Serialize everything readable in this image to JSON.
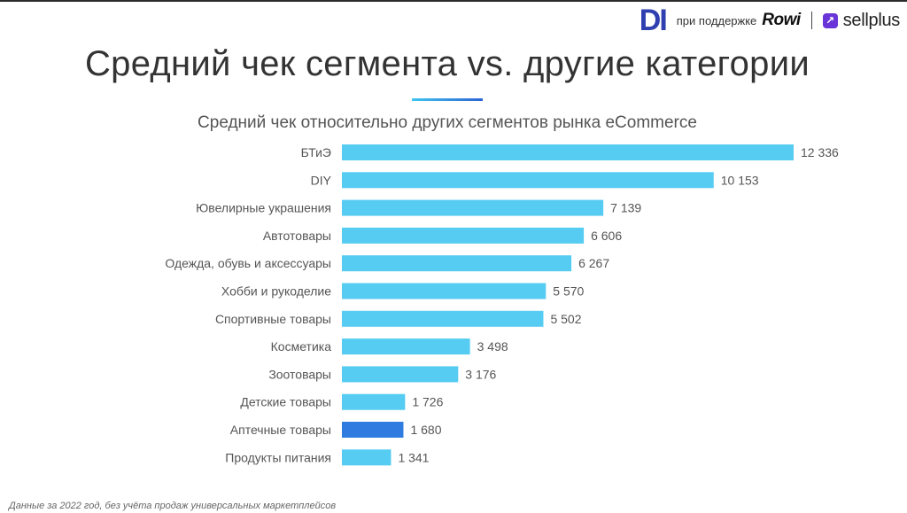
{
  "header": {
    "logo_text": "DI",
    "support_text": "при поддержке",
    "partner_logo": "Rowi",
    "sellplus_icon": "↗",
    "sellplus_text": "sellplus"
  },
  "page_title": "Средний чек сегмента vs. другие категории",
  "footnote": "Данные за 2022 год, без учёта продаж универсальных маркетплейсов",
  "colors": {
    "bar": "#56ccf2",
    "highlight_bar": "#2f7be0",
    "accent_gradient_start": "#3ec4ee",
    "accent_gradient_end": "#2d63d6"
  },
  "chart_data": {
    "type": "bar",
    "orientation": "horizontal",
    "title": "Средний чек относительно других сегментов рынка eCommerce",
    "categories": [
      "БТиЭ",
      "DIY",
      "Ювелирные украшения",
      "Автотовары",
      "Одежда, обувь и аксессуары",
      "Хобби и рукоделие",
      "Спортивные товары",
      "Косметика",
      "Зоотовары",
      "Детские товары",
      "Аптечные товары",
      "Продукты питания"
    ],
    "values": [
      12336,
      10153,
      7139,
      6606,
      6267,
      5570,
      5502,
      3498,
      3176,
      1726,
      1680,
      1341
    ],
    "value_labels": [
      "12 336",
      "10 153",
      "7 139",
      "6 606",
      "6 267",
      "5 570",
      "5 502",
      "3 498",
      "3 176",
      "1 726",
      "1 680",
      "1 341"
    ],
    "highlight_category": "Аптечные товары",
    "xlim": [
      0,
      12336
    ],
    "xlabel": "",
    "ylabel": "",
    "grid": false,
    "legend": "none"
  }
}
